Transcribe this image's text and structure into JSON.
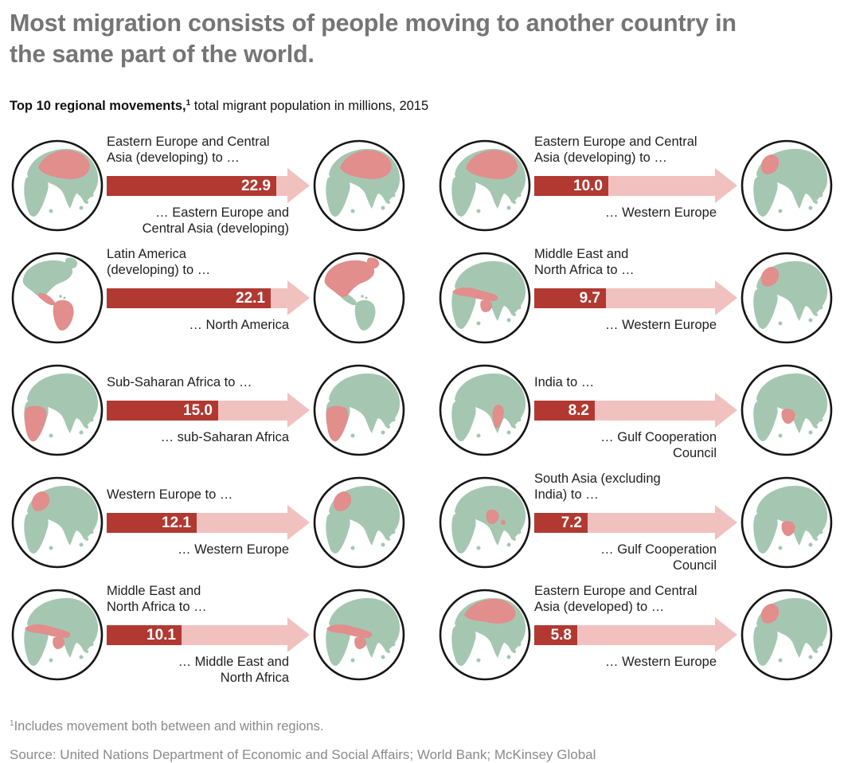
{
  "title": "Most migration consists of people moving to another country in the same part of the world.",
  "subtitle": {
    "bold": "Top 10 regional movements,",
    "sup": "1",
    "rest": " total migrant population in millions, 2015"
  },
  "footnote": {
    "sup": "1",
    "text": "Includes movement both between and within regions."
  },
  "source": "Source: United Nations Department of Economic and Social Affairs; World Bank; McKinsey Global",
  "colors": {
    "bar_dark": "#b13931",
    "bar_pink": "#f1c1c0",
    "land_green": "#a5c7b2",
    "highlight_red": "#e18e8c",
    "globe_outline": "#161616",
    "title_gray": "#757575",
    "label_black": "#1f1f1f",
    "footer_gray": "#8a8a8a"
  },
  "columns": [
    {
      "rows": [
        {
          "origin_label": "Eastern Europe and Central\nAsia (developing) to …",
          "value": "22.9",
          "value_num": 22.9,
          "destination_label": "… Eastern Europe and\nCentral Asia (developing)",
          "origin_globe": {
            "view": "old-world",
            "region": "eastern-europe-central-asia"
          },
          "destination_globe": {
            "view": "old-world",
            "region": "eastern-europe-central-asia"
          }
        },
        {
          "origin_label": "Latin America\n(developing) to …",
          "value": "22.1",
          "value_num": 22.1,
          "destination_label": "… North America",
          "origin_globe": {
            "view": "americas",
            "region": "latin-america"
          },
          "destination_globe": {
            "view": "americas",
            "region": "north-america"
          }
        },
        {
          "origin_label": "Sub-Saharan Africa to …",
          "value": "15.0",
          "value_num": 15.0,
          "destination_label": "… sub-Saharan Africa",
          "origin_globe": {
            "view": "old-world",
            "region": "sub-saharan-africa"
          },
          "destination_globe": {
            "view": "old-world",
            "region": "sub-saharan-africa"
          }
        },
        {
          "origin_label": "Western Europe to …",
          "value": "12.1",
          "value_num": 12.1,
          "destination_label": "… Western Europe",
          "origin_globe": {
            "view": "old-world",
            "region": "western-europe"
          },
          "destination_globe": {
            "view": "old-world",
            "region": "western-europe"
          }
        },
        {
          "origin_label": "Middle East and\nNorth Africa to …",
          "value": "10.1",
          "value_num": 10.1,
          "destination_label": "… Middle East and\nNorth Africa",
          "origin_globe": {
            "view": "old-world",
            "region": "middle-east-north-africa"
          },
          "destination_globe": {
            "view": "old-world",
            "region": "middle-east-north-africa"
          }
        }
      ]
    },
    {
      "rows": [
        {
          "origin_label": "Eastern Europe and Central\nAsia (developing) to …",
          "value": "10.0",
          "value_num": 10.0,
          "destination_label": "… Western Europe",
          "origin_globe": {
            "view": "old-world",
            "region": "eastern-europe-central-asia"
          },
          "destination_globe": {
            "view": "old-world",
            "region": "western-europe"
          }
        },
        {
          "origin_label": "Middle East and\nNorth Africa to …",
          "value": "9.7",
          "value_num": 9.7,
          "destination_label": "… Western Europe",
          "origin_globe": {
            "view": "old-world",
            "region": "middle-east-north-africa"
          },
          "destination_globe": {
            "view": "old-world",
            "region": "western-europe"
          }
        },
        {
          "origin_label": "India to …",
          "value": "8.2",
          "value_num": 8.2,
          "destination_label": "… Gulf Cooperation\nCouncil",
          "origin_globe": {
            "view": "old-world",
            "region": "india"
          },
          "destination_globe": {
            "view": "old-world",
            "region": "gulf-cooperation-council"
          }
        },
        {
          "origin_label": "South Asia (excluding\nIndia) to …",
          "value": "7.2",
          "value_num": 7.2,
          "destination_label": "… Gulf Cooperation\nCouncil",
          "origin_globe": {
            "view": "old-world",
            "region": "south-asia-excl-india"
          },
          "destination_globe": {
            "view": "old-world",
            "region": "gulf-cooperation-council"
          }
        },
        {
          "origin_label": "Eastern Europe and Central\nAsia (developed) to …",
          "value": "5.8",
          "value_num": 5.8,
          "destination_label": "… Western Europe",
          "origin_globe": {
            "view": "old-world",
            "region": "eastern-europe-central-asia-developed"
          },
          "destination_globe": {
            "view": "old-world",
            "region": "western-europe"
          }
        }
      ]
    }
  ],
  "chart_data": {
    "type": "bar",
    "title": "Top 10 regional movements, total migrant population in millions, 2015",
    "unit": "millions of migrants",
    "year": 2015,
    "flows": [
      {
        "origin": "Eastern Europe and Central Asia (developing)",
        "destination": "Eastern Europe and Central Asia (developing)",
        "value": 22.9
      },
      {
        "origin": "Latin America (developing)",
        "destination": "North America",
        "value": 22.1
      },
      {
        "origin": "Sub-Saharan Africa",
        "destination": "sub-Saharan Africa",
        "value": 15.0
      },
      {
        "origin": "Western Europe",
        "destination": "Western Europe",
        "value": 12.1
      },
      {
        "origin": "Middle East and North Africa",
        "destination": "Middle East and North Africa",
        "value": 10.1
      },
      {
        "origin": "Eastern Europe and Central Asia (developing)",
        "destination": "Western Europe",
        "value": 10.0
      },
      {
        "origin": "Middle East and North Africa",
        "destination": "Western Europe",
        "value": 9.7
      },
      {
        "origin": "India",
        "destination": "Gulf Cooperation Council",
        "value": 8.2
      },
      {
        "origin": "South Asia (excluding India)",
        "destination": "Gulf Cooperation Council",
        "value": 7.2
      },
      {
        "origin": "Eastern Europe and Central Asia (developed)",
        "destination": "Western Europe",
        "value": 5.8
      }
    ]
  }
}
